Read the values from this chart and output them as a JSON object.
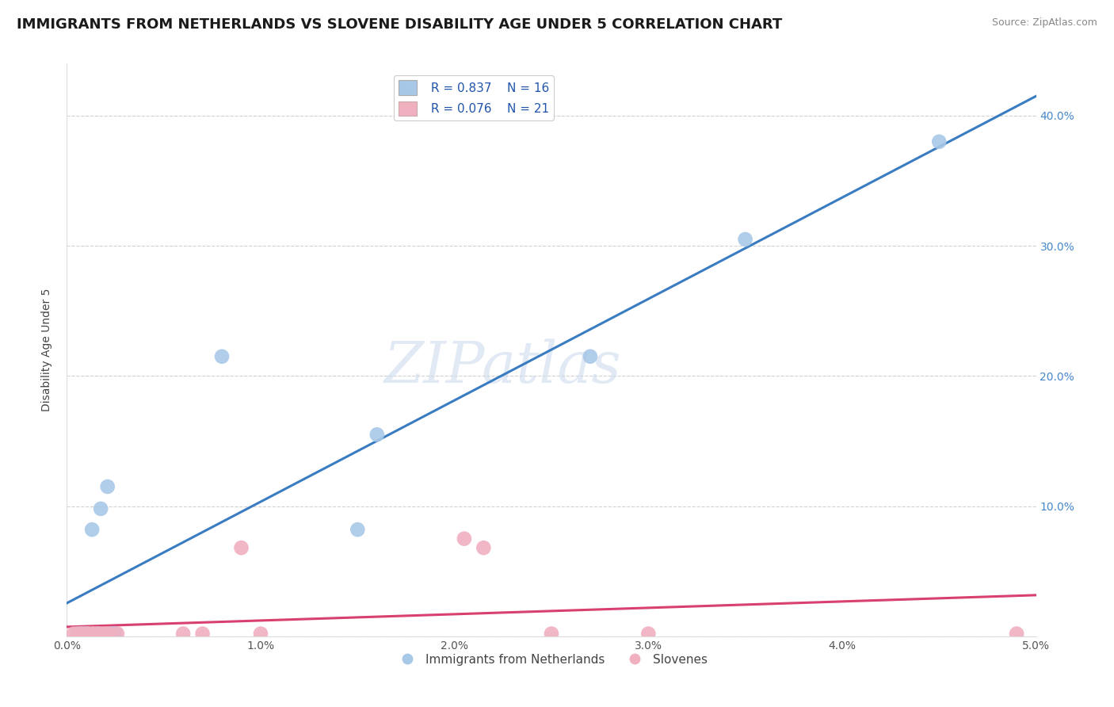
{
  "title": "IMMIGRANTS FROM NETHERLANDS VS SLOVENE DISABILITY AGE UNDER 5 CORRELATION CHART",
  "source": "Source: ZipAtlas.com",
  "ylabel": "Disability Age Under 5",
  "xlim": [
    0.0,
    0.05
  ],
  "ylim": [
    0.0,
    0.44
  ],
  "yticks": [
    0.0,
    0.1,
    0.2,
    0.3,
    0.4
  ],
  "xtick_positions": [
    0.0,
    0.01,
    0.02,
    0.03,
    0.04,
    0.05
  ],
  "xtick_labels": [
    "0.0%",
    "1.0%",
    "2.0%",
    "3.0%",
    "4.0%",
    "5.0%"
  ],
  "left_ytick_labels": [
    "",
    "",
    "",
    "",
    ""
  ],
  "right_ytick_labels": [
    "",
    "10.0%",
    "20.0%",
    "30.0%",
    "40.0%"
  ],
  "blue_series": {
    "label": "Immigrants from Netherlands",
    "color": "#a8c8e8",
    "R": 0.837,
    "N": 16,
    "points": [
      [
        0.00055,
        0.002
      ],
      [
        0.00075,
        0.002
      ],
      [
        0.0009,
        0.002
      ],
      [
        0.0011,
        0.002
      ],
      [
        0.0013,
        0.082
      ],
      [
        0.0016,
        0.002
      ],
      [
        0.00175,
        0.098
      ],
      [
        0.0021,
        0.115
      ],
      [
        0.0023,
        0.002
      ],
      [
        0.0025,
        0.002
      ],
      [
        0.008,
        0.215
      ],
      [
        0.015,
        0.082
      ],
      [
        0.016,
        0.155
      ],
      [
        0.027,
        0.215
      ],
      [
        0.035,
        0.305
      ],
      [
        0.045,
        0.38
      ]
    ]
  },
  "pink_series": {
    "label": "Slovenes",
    "color": "#f0b0c0",
    "R": 0.076,
    "N": 21,
    "points": [
      [
        0.00035,
        0.002
      ],
      [
        0.0006,
        0.002
      ],
      [
        0.00075,
        0.002
      ],
      [
        0.00095,
        0.002
      ],
      [
        0.0011,
        0.002
      ],
      [
        0.0013,
        0.002
      ],
      [
        0.0014,
        0.002
      ],
      [
        0.0016,
        0.002
      ],
      [
        0.0018,
        0.002
      ],
      [
        0.002,
        0.002
      ],
      [
        0.0022,
        0.002
      ],
      [
        0.0026,
        0.002
      ],
      [
        0.006,
        0.002
      ],
      [
        0.007,
        0.002
      ],
      [
        0.009,
        0.068
      ],
      [
        0.01,
        0.002
      ],
      [
        0.0205,
        0.075
      ],
      [
        0.0215,
        0.068
      ],
      [
        0.025,
        0.002
      ],
      [
        0.03,
        0.002
      ],
      [
        0.049,
        0.002
      ]
    ]
  },
  "blue_line_color": "#3a7cc1",
  "pink_line_color": "#d84070",
  "legend_R_blue": "R = 0.837",
  "legend_N_blue": "N = 16",
  "legend_R_pink": "R = 0.076",
  "legend_N_pink": "N = 21",
  "watermark_text": "ZIPatlas",
  "title_fontsize": 13,
  "axis_label_fontsize": 10,
  "tick_fontsize": 10,
  "legend_fontsize": 11
}
